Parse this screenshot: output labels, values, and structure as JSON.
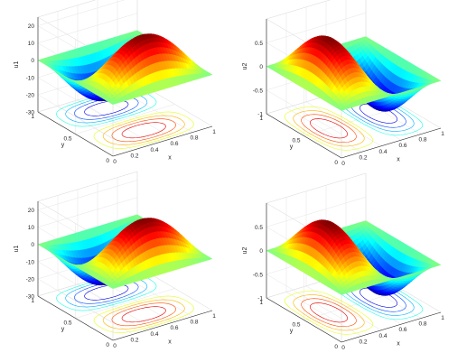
{
  "figure": {
    "description_free": true
  },
  "chart_data": [
    {
      "type": "surface",
      "panel": "top-left",
      "title": "",
      "xlabel": "x",
      "ylabel": "y",
      "zlabel": "u1",
      "xlim": [
        0,
        1
      ],
      "ylim": [
        0,
        1
      ],
      "zlim": [
        -30,
        25
      ],
      "xticks": [
        "0",
        "0.2",
        "0.4",
        "0.6",
        "0.8",
        "1"
      ],
      "yticks": [
        "0",
        "0.5",
        "1"
      ],
      "zticks": [
        "-30",
        "-20",
        "-10",
        "0",
        "10",
        "20"
      ],
      "function": "u = A * sin(pi x) * sin(2 pi y)",
      "amplitude": 25,
      "surface_min": -25,
      "surface_max": 25,
      "contours_below": true,
      "colormap": "jet",
      "grid": true
    },
    {
      "type": "surface",
      "panel": "top-right",
      "title": "",
      "xlabel": "x",
      "ylabel": "y",
      "zlabel": "u2",
      "xlim": [
        0,
        1
      ],
      "ylim": [
        0,
        1
      ],
      "zlim": [
        -1,
        1
      ],
      "xticks": [
        "0",
        "0.2",
        "0.4",
        "0.6",
        "0.8",
        "1"
      ],
      "yticks": [
        "0",
        "0.5",
        "1"
      ],
      "zticks": [
        "-1",
        "-0.5",
        "0",
        "0.5"
      ],
      "function": "u = A * sin(2 pi x) * sin(pi y)",
      "amplitude": 0.9,
      "surface_min": -0.9,
      "surface_max": 0.9,
      "contours_below": true,
      "colormap": "jet",
      "grid": true
    },
    {
      "type": "surface",
      "panel": "bottom-left",
      "title": "",
      "xlabel": "x",
      "ylabel": "y",
      "zlabel": "u1",
      "xlim": [
        0,
        1
      ],
      "ylim": [
        0,
        1
      ],
      "zlim": [
        -30,
        25
      ],
      "xticks": [
        "0",
        "0.2",
        "0.4",
        "0.6",
        "0.8",
        "1"
      ],
      "yticks": [
        "0",
        "0.5",
        "1"
      ],
      "zticks": [
        "-30",
        "-20",
        "-10",
        "0",
        "10",
        "20"
      ],
      "function": "u = A * sin(pi x) * sin(2 pi y)",
      "amplitude": 25,
      "surface_min": -25,
      "surface_max": 25,
      "contours_below": true,
      "colormap": "jet",
      "grid": true
    },
    {
      "type": "surface",
      "panel": "bottom-right",
      "title": "",
      "xlabel": "x",
      "ylabel": "y",
      "zlabel": "u2",
      "xlim": [
        0,
        1
      ],
      "ylim": [
        0,
        1
      ],
      "zlim": [
        -1,
        1
      ],
      "xticks": [
        "0",
        "0.2",
        "0.4",
        "0.6",
        "0.8",
        "1"
      ],
      "yticks": [
        "0",
        "0.5",
        "1"
      ],
      "zticks": [
        "-1",
        "-0.5",
        "0",
        "0.5"
      ],
      "function": "u = A * sin(2 pi x) * sin(pi y)",
      "amplitude": 0.9,
      "surface_min": -0.9,
      "surface_max": 0.9,
      "contours_below": true,
      "colormap": "jet",
      "grid": true
    }
  ]
}
